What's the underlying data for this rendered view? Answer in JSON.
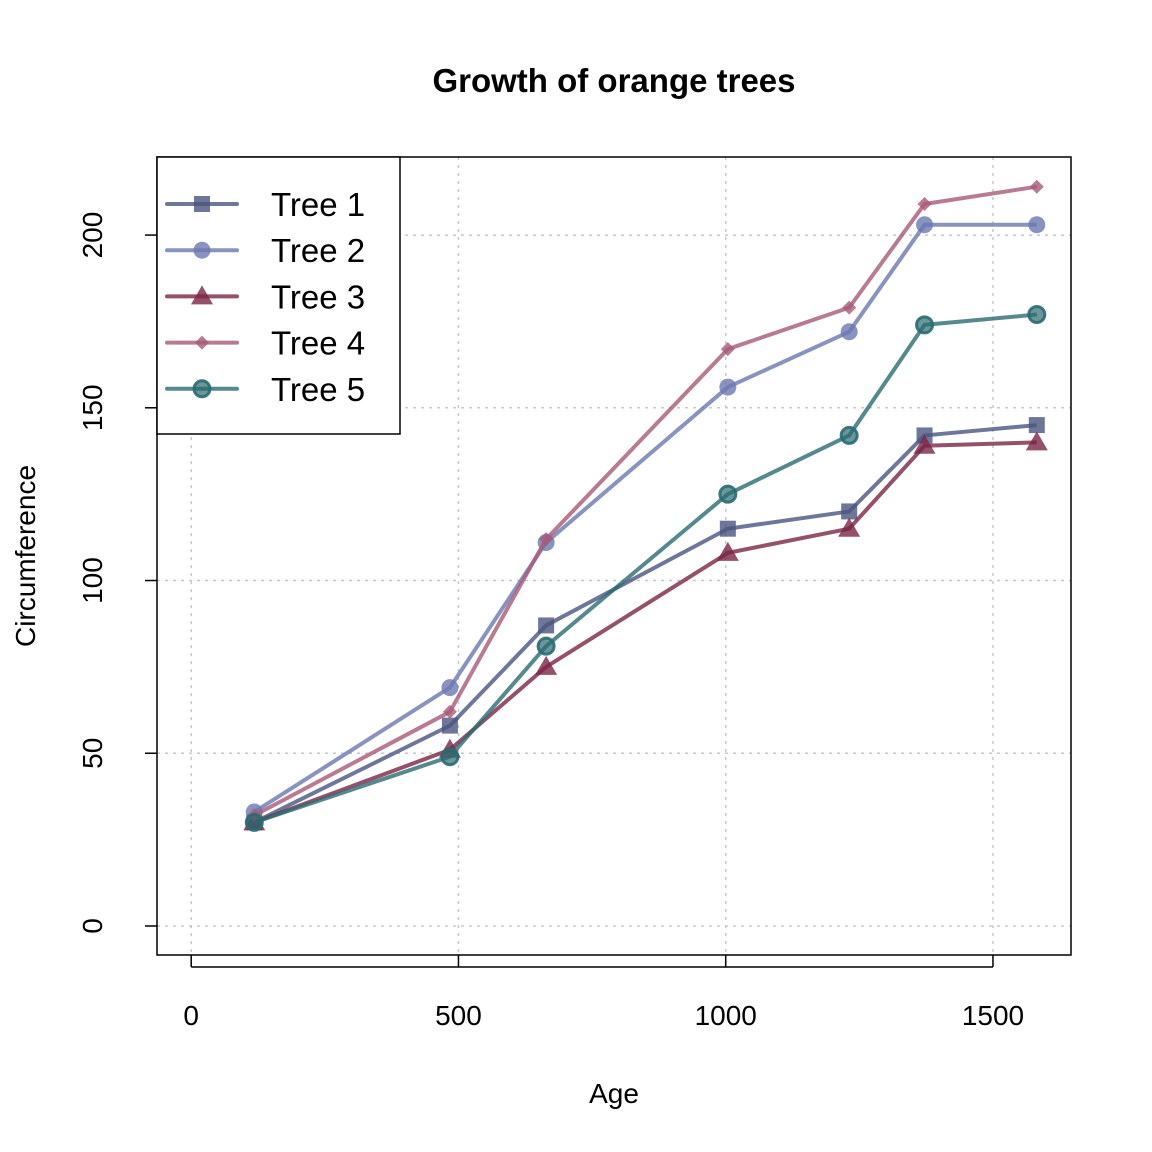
{
  "chart_data": {
    "type": "line",
    "title": "Growth of orange trees",
    "xlabel": "Age",
    "ylabel": "Circumference",
    "xlim": [
      -64,
      1646
    ],
    "ylim": [
      -8.4,
      222.6
    ],
    "xticks": [
      0,
      500,
      1000,
      1500
    ],
    "yticks": [
      0,
      50,
      100,
      150,
      200
    ],
    "grid": true,
    "legend_position": "top-left",
    "x": [
      118,
      484,
      664,
      1004,
      1231,
      1372,
      1582
    ],
    "series": [
      {
        "name": "Tree 1",
        "values": [
          30,
          58,
          87,
          115,
          120,
          142,
          145
        ],
        "color": "#4a5580",
        "marker": "square"
      },
      {
        "name": "Tree 2",
        "values": [
          33,
          69,
          111,
          156,
          172,
          203,
          203
        ],
        "color": "#6b78b0",
        "marker": "circle"
      },
      {
        "name": "Tree 3",
        "values": [
          30,
          51,
          75,
          108,
          115,
          139,
          140
        ],
        "color": "#7a2445",
        "marker": "triangle"
      },
      {
        "name": "Tree 4",
        "values": [
          32,
          62,
          112,
          167,
          179,
          209,
          214
        ],
        "color": "#a85a78",
        "marker": "diamond"
      },
      {
        "name": "Tree 5",
        "values": [
          30,
          49,
          81,
          125,
          142,
          174,
          177
        ],
        "color": "#2a6b72",
        "marker": "ringed-circle"
      }
    ]
  }
}
